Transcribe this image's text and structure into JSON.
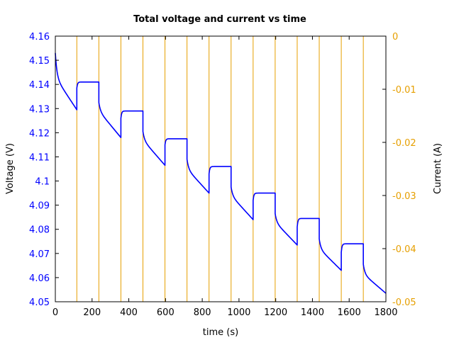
{
  "chart_data": {
    "type": "line",
    "title": "Total voltage and current vs time",
    "xlabel": "time (s)",
    "ylabel": "Voltage (V)",
    "y2label": "Current (A)",
    "xlim": [
      0,
      1800
    ],
    "ylim": [
      4.05,
      4.16
    ],
    "y2lim": [
      -0.05,
      0
    ],
    "x_ticks": [
      "0",
      "200",
      "400",
      "600",
      "800",
      "1000",
      "1200",
      "1400",
      "1600",
      "1800"
    ],
    "y_ticks": [
      "4.05",
      "4.06",
      "4.07",
      "4.08",
      "4.09",
      "4.1",
      "4.11",
      "4.12",
      "4.13",
      "4.14",
      "4.15",
      "4.16"
    ],
    "y2_ticks": [
      "-0.05",
      "-0.04",
      "-0.03",
      "-0.02",
      "-0.01",
      "0"
    ],
    "colors": {
      "voltage": "#0000ff",
      "current": "#e69f00"
    },
    "series": [
      {
        "name": "Voltage",
        "axis": "left",
        "color": "#0000ff",
        "pulse_cycles": [
          {
            "discharge_start": 0,
            "v_start": 4.153,
            "v_knee": 4.143,
            "rest_start": 117,
            "v_end": 4.1295,
            "v_jump": 4.1385,
            "v_rest": 4.141
          },
          {
            "discharge_start": 237,
            "v_start": 4.1325,
            "v_knee": 4.129,
            "rest_start": 357,
            "v_end": 4.118,
            "v_jump": 4.126,
            "v_rest": 4.129
          },
          {
            "discharge_start": 477,
            "v_start": 4.1205,
            "v_knee": 4.117,
            "rest_start": 597,
            "v_end": 4.1065,
            "v_jump": 4.115,
            "v_rest": 4.1175
          },
          {
            "discharge_start": 717,
            "v_start": 4.109,
            "v_knee": 4.105,
            "rest_start": 837,
            "v_end": 4.095,
            "v_jump": 4.103,
            "v_rest": 4.106
          },
          {
            "discharge_start": 957,
            "v_start": 4.0975,
            "v_knee": 4.094,
            "rest_start": 1077,
            "v_end": 4.084,
            "v_jump": 4.092,
            "v_rest": 4.095
          },
          {
            "discharge_start": 1197,
            "v_start": 4.0865,
            "v_knee": 4.083,
            "rest_start": 1317,
            "v_end": 4.0735,
            "v_jump": 4.081,
            "v_rest": 4.0845
          },
          {
            "discharge_start": 1437,
            "v_start": 4.076,
            "v_knee": 4.072,
            "rest_start": 1557,
            "v_end": 4.063,
            "v_jump": 4.0705,
            "v_rest": 4.074
          },
          {
            "discharge_start": 1677,
            "v_start": 4.0655,
            "v_knee": 4.0615,
            "rest_start": 1800,
            "v_end": 4.0535
          }
        ]
      },
      {
        "name": "Current",
        "axis": "right",
        "color": "#e69f00",
        "switch_times": [
          117,
          237,
          357,
          477,
          597,
          717,
          837,
          957,
          1077,
          1197,
          1317,
          1437,
          1557,
          1677
        ]
      }
    ]
  }
}
